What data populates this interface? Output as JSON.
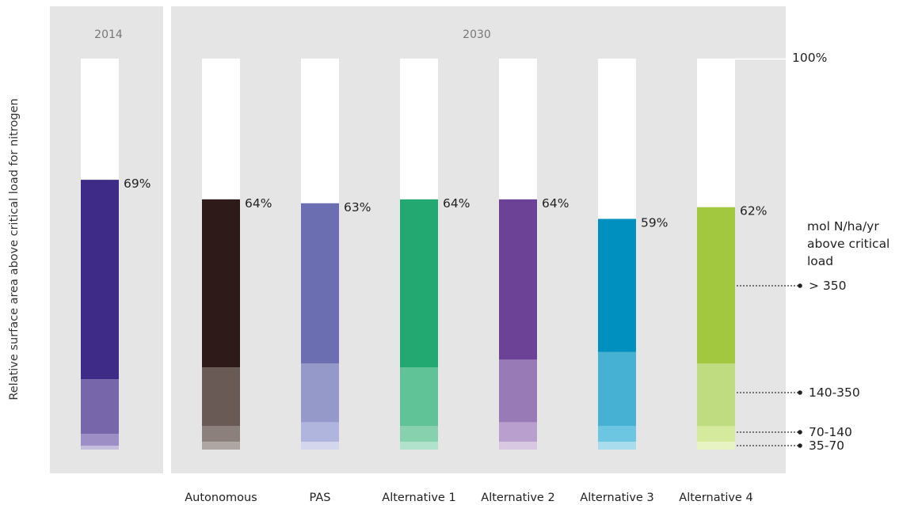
{
  "chart_data": {
    "type": "bar",
    "stacked": true,
    "ylabel": "Relative surface area above critical load for nitrogen",
    "ylim": [
      0,
      100
    ],
    "top_tick_label": "100%",
    "panels": [
      {
        "label": "2014",
        "categories": [
          "2014"
        ]
      },
      {
        "label": "2030",
        "categories": [
          "Autonomous",
          "PAS",
          "Alternative 1",
          "Alternative 2",
          "Alternative 3",
          "Alternative 4"
        ]
      }
    ],
    "categories": [
      "2014",
      "Autonomous",
      "PAS",
      "Alternative 1",
      "Alternative 2",
      "Alternative 3",
      "Alternative 4"
    ],
    "x_labels": [
      "",
      "Autonomous",
      "PAS",
      "Alternative 1",
      "Alternative 2",
      "Alternative 3",
      "Alternative 4"
    ],
    "totals": [
      69,
      64,
      63,
      64,
      64,
      59,
      62
    ],
    "total_labels": [
      "69%",
      "64%",
      "63%",
      "64%",
      "64%",
      "59%",
      "62%"
    ],
    "series": [
      {
        "name": "35-70",
        "values": [
          1,
          2,
          2,
          2,
          2,
          2,
          2
        ]
      },
      {
        "name": "70-140",
        "values": [
          3,
          4,
          5,
          4,
          5,
          4,
          4
        ]
      },
      {
        "name": "140-350",
        "values": [
          14,
          15,
          15,
          15,
          16,
          19,
          16
        ]
      },
      {
        "name": "> 350",
        "values": [
          51,
          43,
          41,
          43,
          41,
          34,
          40
        ]
      }
    ],
    "colors": [
      [
        "#c4bedc",
        "#9d8fc6",
        "#7766aa",
        "#3d2b87"
      ],
      [
        "#aea6a2",
        "#8b807b",
        "#6a5a55",
        "#2e1a18"
      ],
      [
        "#d3d6ec",
        "#b0b5de",
        "#9599c9",
        "#6b6fb2"
      ],
      [
        "#b1e2cb",
        "#87d1ae",
        "#60c297",
        "#22a871"
      ],
      [
        "#d8c8e2",
        "#b89fcd",
        "#977ab6",
        "#6c4296"
      ],
      [
        "#a9dcec",
        "#6cc5e1",
        "#47b1d4",
        "#0090c0"
      ],
      [
        "#e7f3c2",
        "#d5ea9c",
        "#bfdc80",
        "#a2c83f"
      ]
    ],
    "legend": {
      "title_lines": [
        "mol N/ha/yr",
        "above critical",
        "load"
      ],
      "items": [
        "> 350",
        "140-350",
        "70-140",
        "35-70"
      ]
    },
    "grid": false
  }
}
